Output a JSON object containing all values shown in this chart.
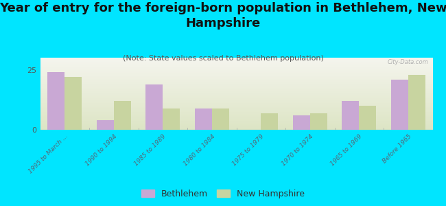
{
  "categories": [
    "1995 to March ...",
    "1990 to 1994",
    "1985 to 1989",
    "1980 to 1984",
    "1975 to 1979",
    "1970 to 1974",
    "1965 to 1969",
    "Before 1965"
  ],
  "bethlehem": [
    24,
    4,
    19,
    9,
    0,
    6,
    12,
    21
  ],
  "new_hampshire": [
    22,
    12,
    9,
    9,
    7,
    7,
    10,
    23
  ],
  "bethlehem_color": "#c9a8d4",
  "nh_color": "#c8d4a0",
  "title": "Year of entry for the foreign-born population in Bethlehem, New\nHampshire",
  "subtitle": "(Note: State values scaled to Bethlehem population)",
  "ylim": [
    0,
    30
  ],
  "yticks": [
    0,
    25
  ],
  "background_color": "#00e5ff",
  "plot_bg_top": "#f5f5ee",
  "plot_bg_bottom": "#dde5c5",
  "watermark": "City-Data.com",
  "legend_bethlehem": "Bethlehem",
  "legend_nh": "New Hampshire",
  "title_fontsize": 13,
  "subtitle_fontsize": 8,
  "bar_width": 0.35
}
